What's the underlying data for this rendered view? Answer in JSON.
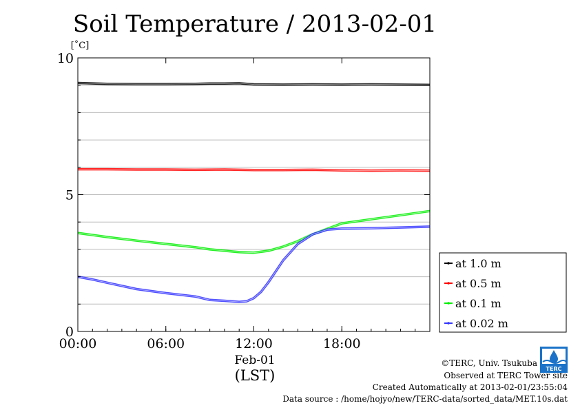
{
  "chart_data": {
    "type": "line",
    "title": "Soil Temperature / 2013-02-01",
    "ylabel": "[˚C]",
    "xlabel": "(LST)",
    "date_label": "Feb-01",
    "ylim": [
      0,
      10
    ],
    "yticks": [
      0,
      5,
      10
    ],
    "xlim_hours": [
      0,
      24
    ],
    "xticks": [
      {
        "value": 0,
        "label": "00:00"
      },
      {
        "value": 6,
        "label": "06:00"
      },
      {
        "value": 12,
        "label": "12:00"
      },
      {
        "value": 18,
        "label": "18:00"
      }
    ],
    "grid": true,
    "legend_position": "right",
    "series": [
      {
        "name": "at 1.0 m",
        "color": "#000000",
        "x": [
          0,
          2,
          4,
          6,
          8,
          9,
          10,
          11,
          12,
          14,
          16,
          18,
          20,
          22,
          24
        ],
        "y": [
          9.08,
          9.05,
          9.04,
          9.04,
          9.05,
          9.06,
          9.06,
          9.07,
          9.03,
          9.02,
          9.03,
          9.02,
          9.03,
          9.02,
          9.01
        ]
      },
      {
        "name": "at 0.5 m",
        "color": "#ff0000",
        "x": [
          0,
          2,
          4,
          6,
          8,
          10,
          12,
          14,
          16,
          18,
          20,
          22,
          24
        ],
        "y": [
          5.93,
          5.93,
          5.92,
          5.92,
          5.91,
          5.92,
          5.9,
          5.9,
          5.91,
          5.89,
          5.88,
          5.89,
          5.88
        ]
      },
      {
        "name": "at 0.1 m",
        "color": "#00ee00",
        "x": [
          0,
          2,
          4,
          6,
          8,
          9,
          10,
          11,
          12,
          13,
          14,
          15,
          16,
          17,
          18,
          20,
          22,
          24
        ],
        "y": [
          3.6,
          3.45,
          3.32,
          3.2,
          3.08,
          3.0,
          2.95,
          2.9,
          2.88,
          2.95,
          3.1,
          3.3,
          3.55,
          3.75,
          3.95,
          4.1,
          4.25,
          4.4
        ]
      },
      {
        "name": "at 0.02 m",
        "color": "#3333ff",
        "x": [
          0,
          1,
          2,
          4,
          6,
          8,
          9,
          10,
          11,
          11.5,
          12,
          12.5,
          13,
          14,
          15,
          16,
          17,
          18,
          20,
          22,
          24
        ],
        "y": [
          2.0,
          1.9,
          1.78,
          1.55,
          1.4,
          1.28,
          1.15,
          1.12,
          1.08,
          1.1,
          1.22,
          1.45,
          1.8,
          2.6,
          3.2,
          3.55,
          3.72,
          3.76,
          3.77,
          3.8,
          3.83
        ]
      }
    ]
  },
  "footer": {
    "copyright": "©TERC, Univ. Tsukuba",
    "site": "Observed at TERC Tower site",
    "created": "Created Automatically at 2013-02-01/23:55:04",
    "source": "Data source : /home/hojyo/new/TERC-data/sorted_data/MET.10s.dat"
  },
  "logo": {
    "text": "TERC",
    "color": "#1a73c8"
  }
}
